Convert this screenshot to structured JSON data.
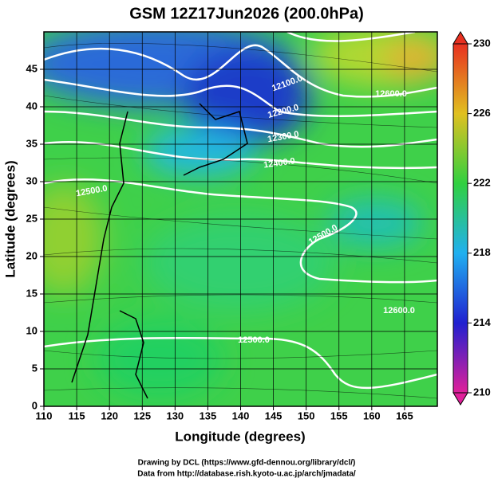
{
  "chart_data": {
    "type": "map",
    "title": "GSM 12Z17Jun2026 (200.0hPa)",
    "xlabel": "Longitude (degrees)",
    "ylabel": "Latitude  (degrees)",
    "xlim": [
      110,
      170
    ],
    "ylim": [
      0,
      50
    ],
    "xticks": [
      110,
      115,
      120,
      125,
      130,
      135,
      140,
      145,
      150,
      155,
      160,
      165
    ],
    "yticks": [
      0,
      5,
      10,
      15,
      20,
      25,
      30,
      35,
      40,
      45
    ],
    "grid": true,
    "colorbar_lim": [
      210,
      230
    ],
    "colorbar_ticks": [
      210,
      214,
      218,
      222,
      226,
      230
    ],
    "contour_labels": [
      "12100.0",
      "12200.0",
      "12300.0",
      "12400.0",
      "12500.0",
      "12600.0",
      "12500.0",
      "12500.0",
      "12600.0"
    ],
    "credits": [
      "Drawing by DCL (https://www.gfd-dennou.org/library/dcl/)",
      "Data from http://database.rish.kyoto-u.ac.jp/arch/jmadata/"
    ]
  }
}
